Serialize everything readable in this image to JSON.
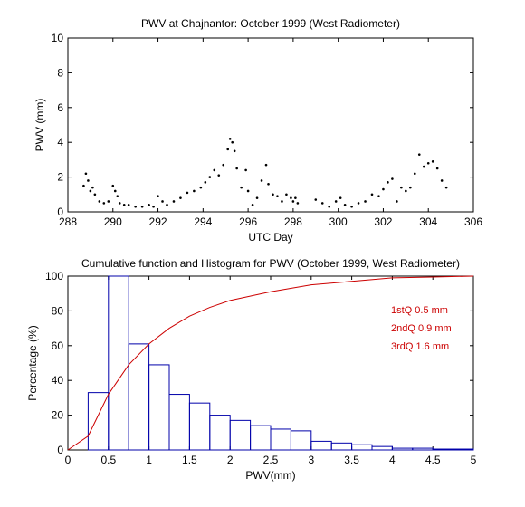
{
  "chart_data": [
    {
      "type": "scatter",
      "title": "PWV at Chajnantor: October 1999 (West Radiometer)",
      "xlabel": "UTC Day",
      "ylabel": "PWV (mm)",
      "xlim": [
        288,
        306
      ],
      "ylim": [
        0,
        10
      ],
      "xticks": [
        "288",
        "290",
        "292",
        "294",
        "296",
        "298",
        "300",
        "302",
        "304",
        "306"
      ],
      "yticks": [
        "0",
        "2",
        "4",
        "6",
        "8",
        "10"
      ],
      "grid": false,
      "series": [
        {
          "color": "#000000",
          "x": [
            288.7,
            288.8,
            288.9,
            289.0,
            289.1,
            289.2,
            289.4,
            289.6,
            289.8,
            290.0,
            290.1,
            290.2,
            290.3,
            290.5,
            290.7,
            291.0,
            291.3,
            291.6,
            291.8,
            292.0,
            292.2,
            292.4,
            292.7,
            293.0,
            293.3,
            293.6,
            293.9,
            294.1,
            294.3,
            294.5,
            294.7,
            294.9,
            295.1,
            295.2,
            295.3,
            295.4,
            295.5,
            295.7,
            295.9,
            296.0,
            296.2,
            296.4,
            296.6,
            296.8,
            296.9,
            297.1,
            297.3,
            297.5,
            297.7,
            297.9,
            298.0,
            298.1,
            298.2,
            299.0,
            299.3,
            299.6,
            299.9,
            300.1,
            300.3,
            300.6,
            300.9,
            301.2,
            301.5,
            301.8,
            302.0,
            302.2,
            302.4,
            302.6,
            302.8,
            303.0,
            303.2,
            303.4,
            303.6,
            303.8,
            304.0,
            304.2,
            304.4,
            304.6,
            304.8
          ],
          "y": [
            1.5,
            2.2,
            1.8,
            1.2,
            1.4,
            1.0,
            0.6,
            0.5,
            0.6,
            1.5,
            1.2,
            0.9,
            0.5,
            0.4,
            0.4,
            0.3,
            0.3,
            0.4,
            0.3,
            0.9,
            0.6,
            0.4,
            0.6,
            0.8,
            1.1,
            1.2,
            1.4,
            1.7,
            2.0,
            2.4,
            2.1,
            2.7,
            3.6,
            4.2,
            4.0,
            3.5,
            2.5,
            1.4,
            2.4,
            1.2,
            0.4,
            0.8,
            1.8,
            2.7,
            1.6,
            1.0,
            0.9,
            0.6,
            1.0,
            0.8,
            0.6,
            0.8,
            0.5,
            0.7,
            0.5,
            0.3,
            0.6,
            0.8,
            0.4,
            0.3,
            0.5,
            0.6,
            1.0,
            0.9,
            1.3,
            1.7,
            1.9,
            0.6,
            1.4,
            1.2,
            1.4,
            2.2,
            3.3,
            2.6,
            2.8,
            2.9,
            2.5,
            1.8,
            1.4
          ]
        }
      ]
    },
    {
      "type": "histogram",
      "title": "Cumulative function and Histogram for PWV (October 1999, West Radiometer)",
      "xlabel": "PWV(mm)",
      "ylabel": "Percentage (%)",
      "xlim": [
        0,
        5
      ],
      "ylim": [
        0,
        100
      ],
      "xticks": [
        "0",
        "0.5",
        "1",
        "1.5",
        "2",
        "2.5",
        "3",
        "3.5",
        "4",
        "4.5",
        "5"
      ],
      "yticks": [
        "0",
        "20",
        "40",
        "60",
        "80",
        "100"
      ],
      "grid": false,
      "series": [
        {
          "kind": "histogram",
          "color": "#0000aa",
          "bin_edges": [
            0,
            0.25,
            0.5,
            0.75,
            1.0,
            1.25,
            1.5,
            1.75,
            2.0,
            2.25,
            2.5,
            2.75,
            3.0,
            3.25,
            3.5,
            3.75,
            4.0,
            4.25,
            4.5,
            4.75,
            5.0
          ],
          "values": [
            0,
            33,
            100,
            61,
            49,
            32,
            27,
            20,
            17,
            14,
            12,
            11,
            5,
            4,
            3,
            2,
            1,
            1,
            0.5,
            0.5
          ]
        },
        {
          "kind": "line",
          "color": "#cc0000",
          "x": [
            0,
            0.25,
            0.5,
            0.75,
            1.0,
            1.25,
            1.5,
            1.75,
            2.0,
            2.5,
            3.0,
            3.5,
            4.0,
            4.5,
            5.0
          ],
          "y": [
            0,
            8,
            32,
            49,
            61,
            70,
            77,
            82,
            86,
            91,
            95,
            97,
            99,
            99.5,
            100
          ]
        }
      ],
      "annotations": [
        {
          "text": "1stQ 0.5 mm",
          "color": "#cc0000"
        },
        {
          "text": "2ndQ 0.9 mm",
          "color": "#cc0000"
        },
        {
          "text": "3rdQ 1.6 mm",
          "color": "#cc0000"
        }
      ]
    }
  ]
}
